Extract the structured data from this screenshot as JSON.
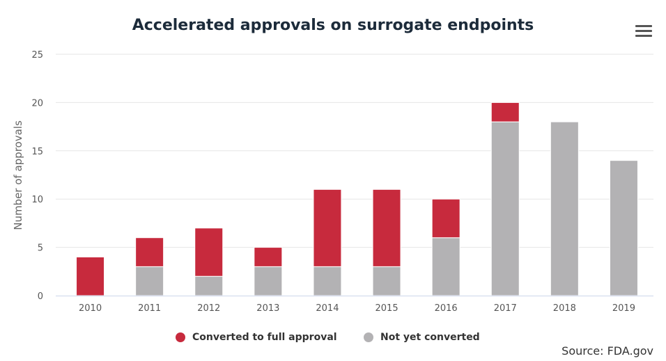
{
  "title": "Accelerated approvals on surrogate endpoints",
  "menu_icon": "hamburger-menu-icon",
  "source": "Source: FDA.gov",
  "colors": {
    "converted": "#c72a3d",
    "not_converted": "#b3b2b4",
    "grid": "#e6e6e6",
    "axis_text": "#555555"
  },
  "chart_data": {
    "type": "bar",
    "stacked": true,
    "title": "Accelerated approvals on surrogate endpoints",
    "xlabel": "",
    "ylabel": "Number of approvals",
    "ylim": [
      0,
      25
    ],
    "yticks": [
      0,
      5,
      10,
      15,
      20,
      25
    ],
    "categories": [
      "2010",
      "2011",
      "2012",
      "2013",
      "2014",
      "2015",
      "2016",
      "2017",
      "2018",
      "2019"
    ],
    "series": [
      {
        "name": "Not yet converted",
        "color": "#b3b2b4",
        "values": [
          0,
          3,
          2,
          3,
          3,
          3,
          6,
          18,
          18,
          14
        ]
      },
      {
        "name": "Converted to full approval",
        "color": "#c72a3d",
        "values": [
          4,
          3,
          5,
          2,
          8,
          8,
          4,
          2,
          0,
          0
        ]
      }
    ],
    "grid": true,
    "legend_position": "bottom"
  },
  "legend": [
    {
      "label": "Converted to full approval",
      "color": "#c72a3d"
    },
    {
      "label": "Not yet converted",
      "color": "#b3b2b4"
    }
  ]
}
